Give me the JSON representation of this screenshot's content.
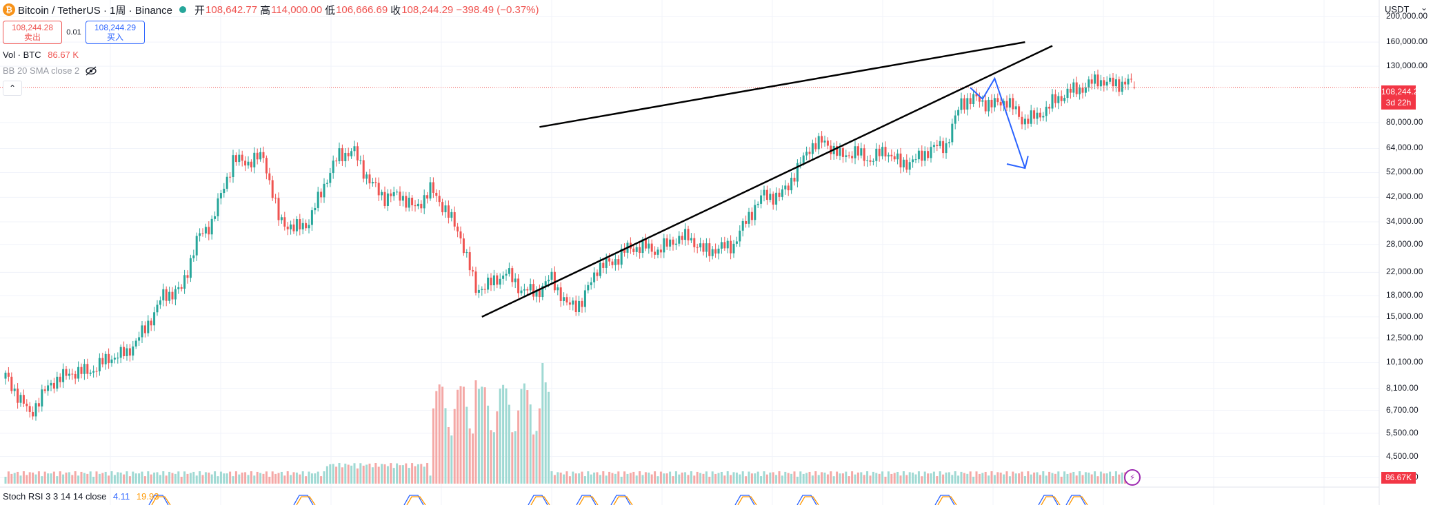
{
  "header": {
    "symbol": "Bitcoin / TetherUS · 1周 · Binance",
    "coin_glyph": "₿",
    "open_label": "开",
    "open_value": "108,642.77",
    "high_label": "高",
    "high_value": "114,000.00",
    "low_label": "低",
    "low_value": "106,666.69",
    "close_label": "收",
    "close_value": "108,244.29 −398.49 (−0.37%)",
    "status_color": "#26a69a"
  },
  "trade": {
    "sell_price": "108,244.28",
    "sell_label": "卖出",
    "spread": "0.01",
    "buy_price": "108,244.29",
    "buy_label": "买入"
  },
  "indicators": {
    "vol_label": "Vol · BTC",
    "vol_value": "86.67 K",
    "bb_label": "BB 20 SMA close 2",
    "collapse_glyph": "⌃",
    "rsi_label": "Stoch RSI 3 3 14 14 close",
    "rsi_k": "4.11",
    "rsi_d": "19.93"
  },
  "price_axis": {
    "currency": "USDT",
    "currency_arrow": "⌄",
    "labels": [
      "200,000.00",
      "160,000.00",
      "130,000.00",
      "80,000.00",
      "64,000.00",
      "52,000.00",
      "42,000.00",
      "34,000.00",
      "28,000.00",
      "22,000.00",
      "18,000.00",
      "15,000.00",
      "12,500.00",
      "10,100.00",
      "8,100.00",
      "6,700.00",
      "5,500.00",
      "4,500.00",
      "3,750.00"
    ],
    "last_price": "108,244.29",
    "countdown": "3d 22h",
    "volume_tag": "86.67K"
  },
  "colors": {
    "up": "#26a69a",
    "down": "#ef5350",
    "vol_up": "#9fd9d3",
    "vol_down": "#f4a8a6",
    "trendline": "#000000",
    "projection": "#2962ff",
    "last_price_tag": "#f23645",
    "rsi_k": "#2962ff",
    "rsi_d": "#ff9800"
  },
  "chart_data": {
    "type": "candlestick",
    "symbol": "BTCUSDT",
    "interval": "1W",
    "y_scale": "log",
    "ylim": [
      3500,
      230000
    ],
    "anchors": [
      [
        0,
        9000
      ],
      [
        8,
        6500
      ],
      [
        15,
        8500
      ],
      [
        22,
        9300
      ],
      [
        28,
        9400
      ],
      [
        34,
        10500
      ],
      [
        40,
        11000
      ],
      [
        46,
        13500
      ],
      [
        52,
        18000
      ],
      [
        58,
        19000
      ],
      [
        63,
        29000
      ],
      [
        68,
        34000
      ],
      [
        75,
        58000
      ],
      [
        80,
        57000
      ],
      [
        85,
        60000
      ],
      [
        90,
        35000
      ],
      [
        95,
        32000
      ],
      [
        100,
        34000
      ],
      [
        105,
        47000
      ],
      [
        110,
        61000
      ],
      [
        115,
        62000
      ],
      [
        120,
        48000
      ],
      [
        125,
        42000
      ],
      [
        130,
        43000
      ],
      [
        135,
        38000
      ],
      [
        140,
        45000
      ],
      [
        145,
        38000
      ],
      [
        150,
        30000
      ],
      [
        155,
        19000
      ],
      [
        160,
        20000
      ],
      [
        165,
        22000
      ],
      [
        170,
        19000
      ],
      [
        175,
        18500
      ],
      [
        180,
        21000
      ],
      [
        185,
        16500
      ],
      [
        190,
        17000
      ],
      [
        195,
        23000
      ],
      [
        200,
        24000
      ],
      [
        205,
        27000
      ],
      [
        210,
        27500
      ],
      [
        215,
        26500
      ],
      [
        220,
        29000
      ],
      [
        225,
        30000
      ],
      [
        230,
        26500
      ],
      [
        235,
        27000
      ],
      [
        240,
        28000
      ],
      [
        245,
        36000
      ],
      [
        250,
        43000
      ],
      [
        255,
        42000
      ],
      [
        260,
        51000
      ],
      [
        265,
        65000
      ],
      [
        270,
        68000
      ],
      [
        275,
        60000
      ],
      [
        280,
        62000
      ],
      [
        285,
        58000
      ],
      [
        290,
        63000
      ],
      [
        295,
        56000
      ],
      [
        300,
        58000
      ],
      [
        305,
        64000
      ],
      [
        310,
        66000
      ],
      [
        315,
        96000
      ],
      [
        320,
        98000
      ],
      [
        325,
        93000
      ],
      [
        330,
        97000
      ],
      [
        335,
        82000
      ],
      [
        340,
        84000
      ],
      [
        345,
        95000
      ],
      [
        350,
        104000
      ],
      [
        355,
        108000
      ],
      [
        360,
        116000
      ],
      [
        365,
        111000
      ],
      [
        370,
        114000
      ],
      [
        372,
        108244
      ]
    ],
    "ohlc_last": {
      "open": 108642.77,
      "high": 114000.0,
      "low": 106666.69,
      "close": 108244.29,
      "change": -398.49,
      "change_pct": -0.37
    },
    "last_volume": 86670,
    "stoch_rsi": {
      "k": 4.11,
      "d": 19.93
    },
    "trendlines": [
      {
        "name": "upper",
        "from": [
          176,
          77000
        ],
        "to": [
          336,
          160000
        ]
      },
      {
        "name": "lower",
        "from": [
          157,
          15000
        ],
        "to": [
          345,
          155000
        ]
      }
    ],
    "projection_path": [
      [
        318,
        108000
      ],
      [
        322,
        98000
      ],
      [
        326,
        117000
      ],
      [
        336,
        54000
      ]
    ],
    "projection_arrowhead": [
      [
        330,
        56000
      ],
      [
        336,
        54000
      ],
      [
        337,
        60000
      ]
    ]
  }
}
